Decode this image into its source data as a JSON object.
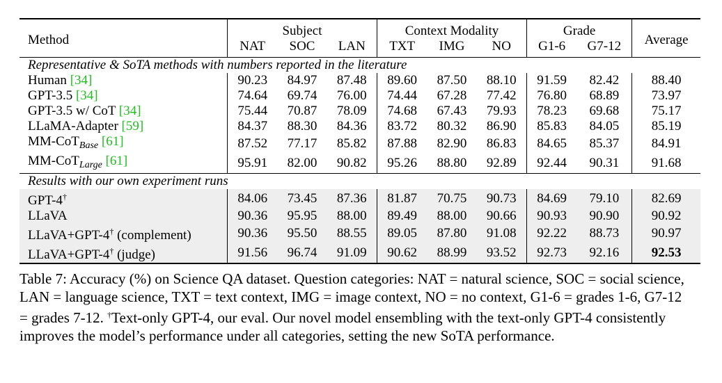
{
  "table": {
    "header": {
      "method": "Method",
      "groups": [
        "Subject",
        "Context Modality",
        "Grade"
      ],
      "average": "Average",
      "columns": [
        "NAT",
        "SOC",
        "LAN",
        "TXT",
        "IMG",
        "NO",
        "G1-6",
        "G7-12"
      ]
    },
    "sections": [
      {
        "title": "Representative & SoTA methods with numbers reported in the literature",
        "rows": [
          {
            "name": "Human",
            "ref": "[34]",
            "values": [
              "90.23",
              "84.97",
              "87.48",
              "89.60",
              "87.50",
              "88.10",
              "91.59",
              "82.42",
              "88.40"
            ]
          },
          {
            "name": "GPT-3.5",
            "ref": "[34]",
            "values": [
              "74.64",
              "69.74",
              "76.00",
              "74.44",
              "67.28",
              "77.42",
              "76.80",
              "68.89",
              "73.97"
            ]
          },
          {
            "name": "GPT-3.5 w/ CoT",
            "ref": "[34]",
            "values": [
              "75.44",
              "70.87",
              "78.09",
              "74.68",
              "67.43",
              "79.93",
              "78.23",
              "69.68",
              "75.17"
            ]
          },
          {
            "name": "LLaMA-Adapter",
            "ref": "[59]",
            "values": [
              "84.37",
              "88.30",
              "84.36",
              "83.72",
              "80.32",
              "86.90",
              "85.83",
              "84.05",
              "85.19"
            ]
          },
          {
            "name": "MM-CoT",
            "subscript": "Base",
            "ref": "[61]",
            "values": [
              "87.52",
              "77.17",
              "85.82",
              "87.88",
              "82.90",
              "86.83",
              "84.65",
              "85.37",
              "84.91"
            ]
          },
          {
            "name": "MM-CoT",
            "subscript": "Large",
            "ref": "[61]",
            "values": [
              "95.91",
              "82.00",
              "90.82",
              "95.26",
              "88.80",
              "92.89",
              "92.44",
              "90.31",
              "91.68"
            ]
          }
        ]
      },
      {
        "title": "Results with our own experiment runs",
        "rows": [
          {
            "name": "GPT-4",
            "dagger": "†",
            "suffix": "",
            "values": [
              "84.06",
              "73.45",
              "87.36",
              "81.87",
              "70.75",
              "90.73",
              "84.69",
              "79.10",
              "82.69"
            ]
          },
          {
            "name": "LLaVA",
            "values": [
              "90.36",
              "95.95",
              "88.00",
              "89.49",
              "88.00",
              "90.66",
              "90.93",
              "90.90",
              "90.92"
            ]
          },
          {
            "name": "LLaVA+GPT-4",
            "dagger": "†",
            "suffix": " (complement)",
            "values": [
              "90.36",
              "95.50",
              "88.55",
              "89.05",
              "87.80",
              "91.08",
              "92.22",
              "88.73",
              "90.97"
            ]
          },
          {
            "name": "LLaVA+GPT-4",
            "dagger": "†",
            "suffix": " (judge)",
            "values": [
              "91.56",
              "96.74",
              "91.09",
              "90.62",
              "88.99",
              "93.52",
              "92.73",
              "92.16",
              "92.53"
            ],
            "bold_average": true
          }
        ]
      }
    ]
  },
  "caption": {
    "part1": "Table 7: Accuracy (%) on Science QA dataset. Question categories: NAT = natural science, SOC = social science, LAN = language science, TXT = text context, IMG = image context, NO = no context, G1-6 = grades 1-6, G7-12 = grades 7-12. ",
    "dagger": "†",
    "part2": "Text-only GPT-4, our eval. Our novel model ensembling with the text-only GPT-4 consistently improves the model’s performance under all categories, setting the new SoTA performance."
  },
  "colors": {
    "ref": "#1fbf1f",
    "shade": "#eeeeee"
  }
}
